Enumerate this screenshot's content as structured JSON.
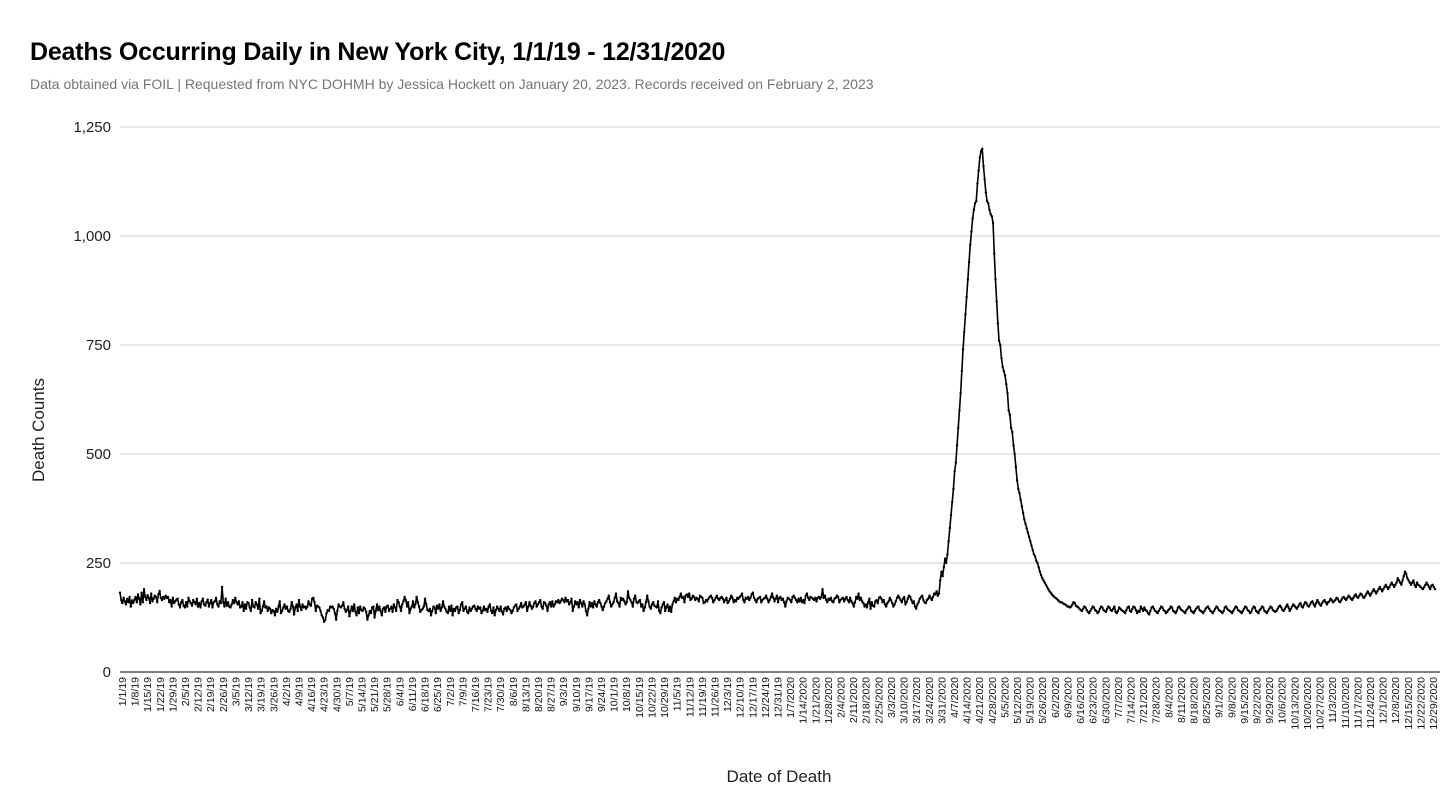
{
  "chart_data": {
    "type": "line",
    "title": "Deaths Occurring Daily in New York City, 1/1/19 - 12/31/2020",
    "subtitle": "Data obtained via FOIL | Requested from NYC DOHMH by Jessica Hockett on January 20, 2023. Records received on February 2, 2023",
    "xlabel": "Date of Death",
    "ylabel": "Death Counts",
    "ylim": [
      0,
      1250
    ],
    "yticks": [
      0,
      250,
      500,
      750,
      1000,
      1250
    ],
    "ytick_labels": [
      "0",
      "250",
      "500",
      "750",
      "1,000",
      "1,250"
    ],
    "grid": true,
    "legend": "none",
    "x_start": "1/1/19",
    "x_end": "12/31/2020",
    "xtick_labels": [
      "1/1/19",
      "1/8/19",
      "1/15/19",
      "1/22/19",
      "1/29/19",
      "2/5/19",
      "2/12/19",
      "2/19/19",
      "2/26/19",
      "3/5/19",
      "3/12/19",
      "3/19/19",
      "3/26/19",
      "4/2/19",
      "4/9/19",
      "4/16/19",
      "4/23/19",
      "4/30/19",
      "5/7/19",
      "5/14/19",
      "5/21/19",
      "5/28/19",
      "6/4/19",
      "6/11/19",
      "6/18/19",
      "6/25/19",
      "7/2/19",
      "7/9/19",
      "7/16/19",
      "7/23/19",
      "7/30/19",
      "8/6/19",
      "8/13/19",
      "8/20/19",
      "8/27/19",
      "9/3/19",
      "9/10/19",
      "9/17/19",
      "9/24/19",
      "10/1/19",
      "10/8/19",
      "10/15/19",
      "10/22/19",
      "10/29/19",
      "11/5/19",
      "11/12/19",
      "11/19/19",
      "11/26/19",
      "12/3/19",
      "12/10/19",
      "12/17/19",
      "12/24/19",
      "12/31/19",
      "1/7/2020",
      "1/14/2020",
      "1/21/2020",
      "1/28/2020",
      "2/4/2020",
      "2/11/2020",
      "2/18/2020",
      "2/25/2020",
      "3/3/2020",
      "3/10/2020",
      "3/17/2020",
      "3/24/2020",
      "3/31/2020",
      "4/7/2020",
      "4/14/2020",
      "4/21/2020",
      "4/28/2020",
      "5/5/2020",
      "5/12/2020",
      "5/19/2020",
      "5/26/2020",
      "6/2/2020",
      "6/9/2020",
      "6/16/2020",
      "6/23/2020",
      "6/30/2020",
      "7/7/2020",
      "7/14/2020",
      "7/21/2020",
      "7/28/2020",
      "8/4/2020",
      "8/11/2020",
      "8/18/2020",
      "8/25/2020",
      "9/1/2020",
      "9/8/2020",
      "9/15/2020",
      "9/22/2020",
      "9/29/2020",
      "10/6/2020",
      "10/13/2020",
      "10/20/2020",
      "10/27/2020",
      "11/3/2020",
      "11/10/2020",
      "11/17/2020",
      "11/24/2020",
      "12/1/2020",
      "12/8/2020",
      "12/15/2020",
      "12/22/2020",
      "12/29/2020"
    ],
    "series": [
      {
        "color": "#000000",
        "values": [
          182,
          165,
          158,
          170,
          162,
          155,
          168,
          160,
          172,
          150,
          164,
          158,
          166,
          172,
          160,
          178,
          168,
          155,
          182,
          160,
          190,
          172,
          165,
          176,
          170,
          158,
          180,
          162,
          168,
          175,
          172,
          160,
          178,
          186,
          170,
          165,
          172,
          168,
          175,
          170,
          172,
          160,
          165,
          150,
          170,
          158,
          162,
          166,
          168,
          155,
          148,
          160,
          165,
          152,
          148,
          160,
          150,
          170,
          162,
          158,
          152,
          165,
          160,
          155,
          168,
          150,
          158,
          148,
          162,
          168,
          155,
          152,
          160,
          166,
          150,
          158,
          165,
          148,
          160,
          162,
          170,
          155,
          150,
          162,
          158,
          195,
          160,
          150,
          168,
          152,
          160,
          150,
          148,
          155,
          165,
          158,
          170,
          160,
          155,
          162,
          148,
          150,
          160,
          140,
          155,
          145,
          160,
          158,
          148,
          140,
          165,
          150,
          148,
          160,
          155,
          145,
          168,
          135,
          140,
          150,
          162,
          148,
          150,
          140,
          148,
          145,
          135,
          142,
          140,
          130,
          145,
          138,
          150,
          162,
          135,
          140,
          148,
          155,
          145,
          150,
          140,
          138,
          145,
          160,
          150,
          132,
          148,
          155,
          140,
          165,
          150,
          142,
          155,
          148,
          150,
          145,
          150,
          162,
          155,
          152,
          168,
          170,
          160,
          140,
          152,
          150,
          148,
          140,
          130,
          125,
          115,
          120,
          135,
          142,
          140,
          150,
          148,
          150,
          145,
          135,
          120,
          140,
          155,
          150,
          148,
          152,
          160,
          145,
          138,
          142,
          150,
          128,
          140,
          150,
          140,
          155,
          138,
          130,
          148,
          135,
          150,
          142,
          140,
          148,
          145,
          138,
          120,
          130,
          140,
          135,
          148,
          150,
          125,
          140,
          155,
          142,
          150,
          140,
          130,
          145,
          148,
          138,
          150,
          152,
          140,
          145,
          150,
          138,
          155,
          148,
          140,
          165,
          160,
          150,
          140,
          155,
          162,
          172,
          165,
          150,
          160,
          135,
          145,
          150,
          162,
          148,
          155,
          172,
          160,
          150,
          138,
          142,
          145,
          150,
          168,
          155,
          142,
          140,
          145,
          130,
          140,
          150,
          148,
          135,
          152,
          145,
          155,
          140,
          148,
          162,
          150,
          145,
          138,
          135,
          150,
          140,
          152,
          130,
          145,
          140,
          148,
          150,
          135,
          142,
          155,
          160,
          140,
          145,
          150,
          138,
          135,
          148,
          140,
          145,
          150,
          152,
          145,
          140,
          150,
          145,
          148,
          135,
          140,
          150,
          142,
          145,
          138,
          150,
          155,
          140,
          135,
          148,
          130,
          142,
          150,
          145,
          140,
          150,
          138,
          132,
          145,
          148,
          140,
          150,
          145,
          142,
          135,
          140,
          148,
          152,
          155,
          140,
          145,
          150,
          158,
          148,
          150,
          155,
          160,
          140,
          150,
          160,
          152,
          145,
          150,
          158,
          162,
          150,
          155,
          160,
          165,
          150,
          145,
          160,
          158,
          152,
          140,
          155,
          160,
          150,
          162,
          150,
          155,
          162,
          160,
          165,
          158,
          162,
          168,
          165,
          160,
          170,
          162,
          165,
          155,
          160,
          168,
          140,
          150,
          162,
          155,
          160,
          148,
          165,
          158,
          150,
          162,
          155,
          140,
          130,
          145,
          160,
          150,
          158,
          148,
          162,
          155,
          150,
          160,
          165,
          158,
          150,
          142,
          150,
          158,
          162,
          168,
          175,
          160,
          150,
          155,
          160,
          170,
          180,
          162,
          158,
          150,
          170,
          165,
          168,
          162,
          155,
          160,
          185,
          170,
          165,
          160,
          150,
          168,
          175,
          160,
          158,
          162,
          165,
          150,
          155,
          140,
          148,
          160,
          175,
          162,
          150,
          145,
          155,
          160,
          152,
          150,
          148,
          162,
          140,
          135,
          148,
          155,
          160,
          140,
          150,
          155,
          140,
          150,
          138,
          155,
          162,
          170,
          160,
          168,
          165,
          172,
          180,
          170,
          172,
          160,
          175,
          178,
          172,
          180,
          165,
          168,
          175,
          172,
          165,
          170,
          168,
          162,
          175,
          172,
          170,
          158,
          160,
          165,
          162,
          168,
          172,
          175,
          170,
          160,
          165,
          170,
          175,
          168,
          165,
          170,
          172,
          168,
          160,
          165,
          170,
          158,
          162,
          168,
          175,
          170,
          160,
          165,
          162,
          170,
          168,
          172,
          175,
          180,
          165,
          160,
          170,
          168,
          172,
          165,
          170,
          178,
          182,
          170,
          165,
          160,
          168,
          170,
          172,
          160,
          165,
          168,
          170,
          175,
          168,
          160,
          165,
          172,
          180,
          170,
          162,
          168,
          175,
          160,
          170,
          172,
          165,
          168,
          160,
          150,
          162,
          170,
          168,
          165,
          160,
          172,
          175,
          170,
          165,
          160,
          168,
          162,
          170,
          160,
          165,
          158,
          175,
          180,
          170,
          165,
          172,
          170,
          168,
          165,
          170,
          162,
          170,
          172,
          168,
          172,
          190,
          170,
          175,
          165,
          160,
          168,
          165,
          170,
          162,
          160,
          168,
          170,
          175,
          172,
          160,
          165,
          168,
          170,
          162,
          168,
          172,
          165,
          160,
          170,
          162,
          158,
          150,
          160,
          172,
          168,
          180,
          165,
          170,
          162,
          158,
          150,
          155,
          148,
          160,
          168,
          145,
          160,
          152,
          150,
          162,
          165,
          158,
          170,
          172,
          168,
          160,
          165,
          155,
          150,
          158,
          162,
          170,
          165,
          158,
          150,
          155,
          162,
          170,
          175,
          170,
          165,
          160,
          168,
          172,
          155,
          160,
          168,
          175,
          172,
          165,
          158,
          162,
          150,
          145,
          155,
          160,
          168,
          172,
          175,
          165,
          160,
          158,
          165,
          168,
          175,
          170,
          165,
          172,
          180,
          178,
          185,
          175,
          180,
          210,
          230,
          220,
          240,
          260,
          250,
          270,
          300,
          330,
          360,
          390,
          420,
          460,
          480,
          520,
          560,
          600,
          640,
          690,
          740,
          780,
          820,
          860,
          900,
          940,
          980,
          1010,
          1040,
          1060,
          1075,
          1080,
          1120,
          1150,
          1180,
          1195,
          1200,
          1160,
          1130,
          1100,
          1080,
          1075,
          1060,
          1050,
          1045,
          1030,
          960,
          900,
          850,
          800,
          760,
          750,
          720,
          700,
          690,
          680,
          660,
          640,
          600,
          590,
          560,
          550,
          520,
          500,
          470,
          440,
          420,
          410,
          395,
          380,
          365,
          350,
          340,
          330,
          320,
          310,
          300,
          290,
          280,
          270,
          265,
          255,
          250,
          240,
          230,
          222,
          215,
          210,
          205,
          200,
          195,
          190,
          185,
          182,
          178,
          175,
          172,
          170,
          168,
          165,
          162,
          160,
          160,
          158,
          156,
          155,
          153,
          150,
          150,
          148,
          150,
          155,
          160,
          158,
          152,
          150,
          148,
          145,
          142,
          140,
          145,
          150,
          148,
          142,
          138,
          135,
          140,
          145,
          150,
          148,
          142,
          140,
          135,
          138,
          145,
          150,
          148,
          142,
          140,
          138,
          145,
          150,
          148,
          142,
          140,
          145,
          150,
          138,
          135,
          140,
          148,
          145,
          142,
          140,
          138,
          135,
          142,
          148,
          150,
          140,
          138,
          145,
          150,
          148,
          142,
          135,
          140,
          138,
          150,
          145,
          140,
          148,
          142,
          140,
          135,
          132,
          140,
          148,
          150,
          145,
          140,
          138,
          135,
          140,
          145,
          150,
          148,
          142,
          140,
          135,
          138,
          142,
          145,
          150,
          148,
          140,
          138,
          135,
          140,
          148,
          150,
          145,
          142,
          140,
          138,
          135,
          142,
          145,
          150,
          148,
          140,
          138,
          135,
          140,
          145,
          148,
          150,
          142,
          140,
          138,
          135,
          140,
          145,
          148,
          150,
          145,
          140,
          138,
          135,
          140,
          145,
          150,
          148,
          142,
          140,
          138,
          135,
          140,
          148,
          150,
          145,
          142,
          140,
          138,
          135,
          140,
          145,
          150,
          148,
          142,
          140,
          138,
          135,
          140,
          145,
          150,
          148,
          142,
          140,
          135,
          138,
          145,
          150,
          148,
          140,
          138,
          135,
          142,
          145,
          150,
          148,
          140,
          138,
          135,
          140,
          145,
          150,
          148,
          142,
          140,
          138,
          140,
          145,
          150,
          152,
          148,
          142,
          140,
          145,
          150,
          155,
          148,
          140,
          145,
          150,
          155,
          152,
          148,
          145,
          150,
          155,
          158,
          150,
          148,
          155,
          160,
          158,
          152,
          150,
          155,
          160,
          162,
          155,
          150,
          158,
          165,
          160,
          155,
          152,
          158,
          162,
          165,
          160,
          155,
          160,
          162,
          168,
          165,
          160,
          162,
          165,
          170,
          168,
          162,
          160,
          165,
          170,
          172,
          168,
          165,
          170,
          175,
          172,
          168,
          165,
          170,
          175,
          178,
          172,
          170,
          175,
          180,
          178,
          172,
          170,
          175,
          180,
          185,
          180,
          175,
          180,
          185,
          190,
          185,
          180,
          185,
          190,
          195,
          190,
          185,
          190,
          195,
          200,
          195,
          190,
          195,
          200,
          205,
          200,
          195,
          200,
          205,
          215,
          210,
          205,
          200,
          210,
          220,
          230,
          225,
          215,
          210,
          205,
          200,
          205,
          210,
          200,
          195,
          205,
          200,
          198,
          195,
          192,
          190,
          195,
          200,
          205,
          200,
          195,
          190,
          198,
          200,
          195,
          190
        ]
      }
    ]
  }
}
